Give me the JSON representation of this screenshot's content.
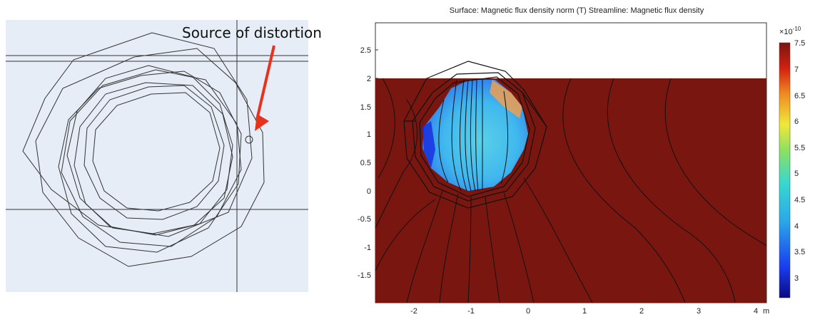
{
  "annotation": {
    "label": "Source of distortion",
    "arrow_color": "#e8321e"
  },
  "plot": {
    "title": "Surface: Magnetic flux density norm (T)  Streamline: Magnetic flux density",
    "x_ticks": [
      "-2",
      "-1",
      "0",
      "1",
      "2",
      "3",
      "4"
    ],
    "x_unit": "m",
    "y_ticks": [
      "2.5",
      "2",
      "1.5",
      "1",
      "0.5",
      "0",
      "-0.5",
      "-1",
      "-1.5"
    ],
    "background_color": "#7a1610"
  },
  "colorbar": {
    "exponent": "×10",
    "exponent_power": "-10",
    "ticks": [
      "7.5",
      "7",
      "6.5",
      "6",
      "5.5",
      "5",
      "4.5",
      "4",
      "3.5",
      "3"
    ]
  }
}
